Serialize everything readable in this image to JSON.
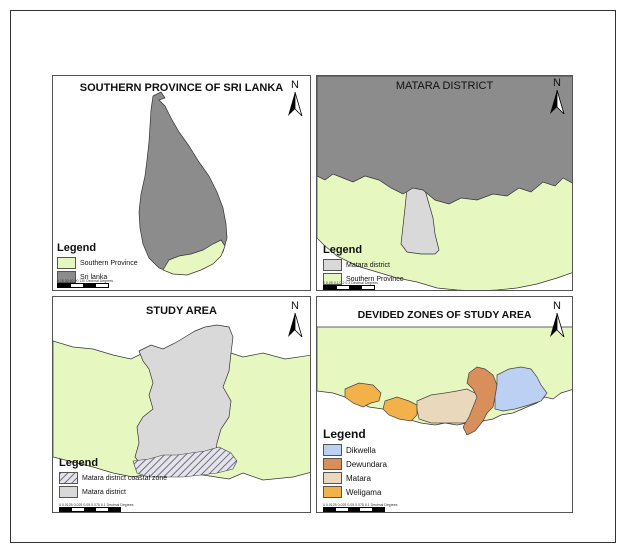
{
  "colors": {
    "southern_province": "#e6f7c0",
    "sri_lanka": "#8c8c8c",
    "matara_district": "#d9d9d9",
    "dikwella": "#bcd0f3",
    "dewundara": "#d98f5b",
    "matara": "#ead8bc",
    "weligama": "#f2b249",
    "border": "#555555"
  },
  "panels": [
    {
      "title": "SOUTHERN PROVINCE OF SRI LANKA",
      "north": "N",
      "legend": {
        "title": "Legend",
        "items": [
          {
            "label": "Southern Province",
            "color": "#e6f7c0"
          },
          {
            "label": "Sri lanka",
            "color": "#8c8c8c"
          }
        ]
      },
      "scale_text": "0 15 30 60 90 120 Decimal Degrees"
    },
    {
      "title": "MATARA DISTRICT",
      "north": "N",
      "legend": {
        "title": "Legend",
        "items": [
          {
            "label": "Matara district",
            "color": "#d9d9d9"
          },
          {
            "label": "Southern Province",
            "color": "#e6f7c0"
          }
        ]
      },
      "scale_text": "0 0.05 0.1 0.2 0.3 Decimal Degrees"
    },
    {
      "title": "STUDY AREA",
      "north": "N",
      "legend": {
        "title": "Legend",
        "items": [
          {
            "label": "Matara district coastal zone",
            "color": "hatch"
          },
          {
            "label": "Matara district",
            "color": "#d9d9d9"
          }
        ]
      },
      "scale_text": "0 0.0125 0.025 0.05 0.075 0.1 Decimal Degrees"
    },
    {
      "title": "DEVIDED ZONES OF STUDY AREA",
      "north": "N",
      "legend": {
        "title": "Legend",
        "items": [
          {
            "label": "Dikwella",
            "color": "#bcd0f3"
          },
          {
            "label": "Dewundara",
            "color": "#d98f5b"
          },
          {
            "label": "Matara",
            "color": "#ead8bc"
          },
          {
            "label": "Weligama",
            "color": "#f2b249"
          }
        ]
      },
      "scale_text": "0 0.0125 0.025 0.05 0.075 0.1 Decimal Degrees"
    }
  ]
}
